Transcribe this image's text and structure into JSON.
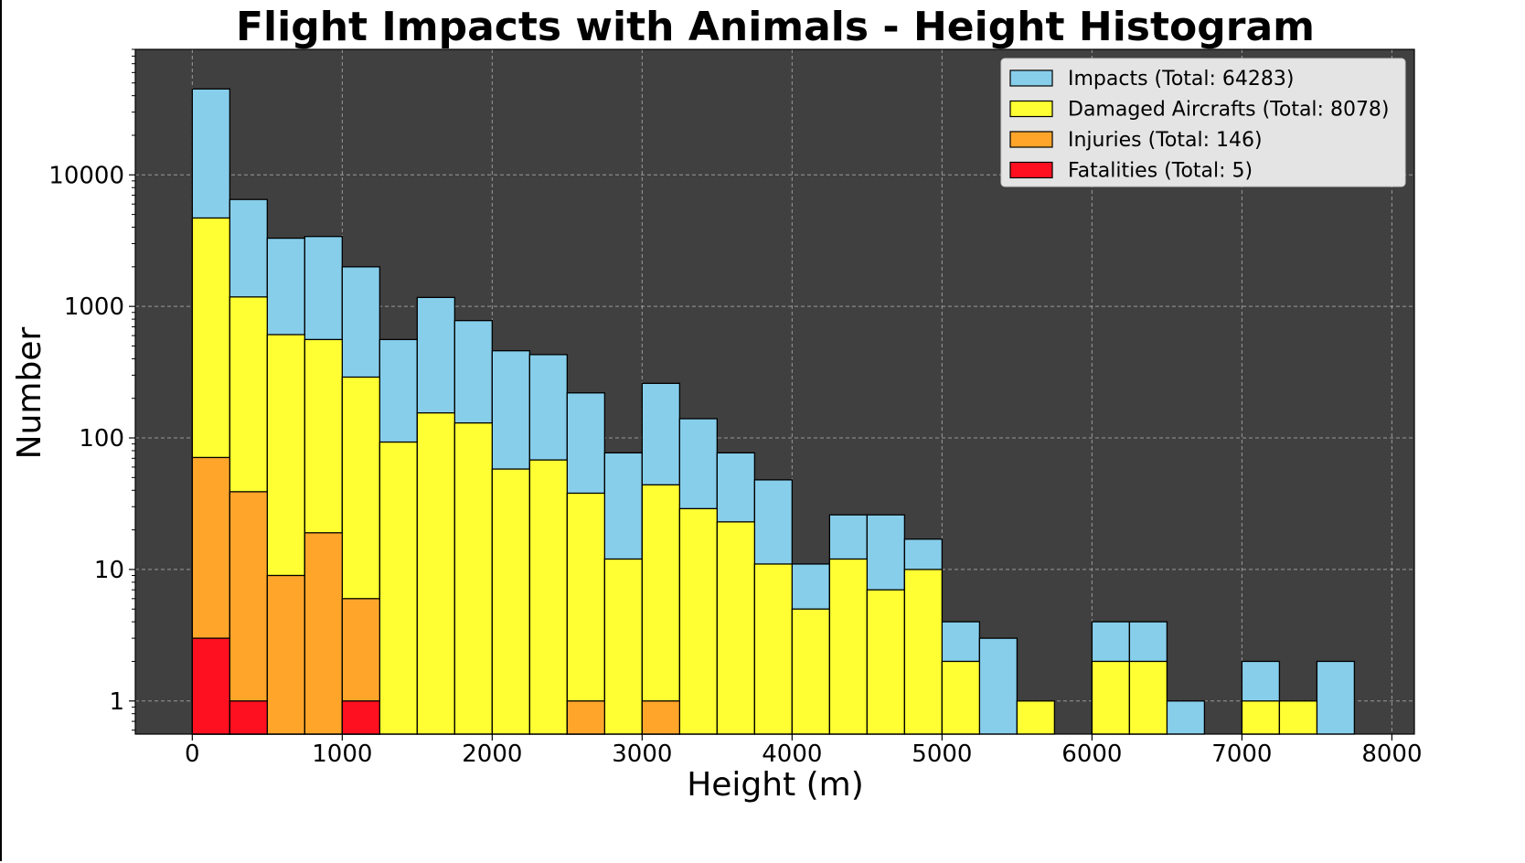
{
  "chart_data": {
    "type": "bar",
    "title": "Flight Impacts with Animals - Height Histogram",
    "xlabel": "Height (m)",
    "ylabel": "Number",
    "yscale": "log",
    "xlim": [
      -380,
      8150
    ],
    "ylim": [
      0.56,
      90000
    ],
    "x_ticks": [
      0,
      1000,
      2000,
      3000,
      4000,
      5000,
      6000,
      7000,
      8000
    ],
    "x_tick_labels": [
      "0",
      "1000",
      "2000",
      "3000",
      "4000",
      "5000",
      "6000",
      "7000",
      "8000"
    ],
    "y_ticks": [
      1,
      10,
      100,
      1000,
      10000
    ],
    "y_tick_labels": [
      "1",
      "10",
      "100",
      "1000",
      "10000"
    ],
    "grid": true,
    "legend_position": "top-right",
    "background_color": "#404040",
    "bin_width": 250,
    "bin_starts": [
      0,
      250,
      500,
      750,
      1000,
      1250,
      1500,
      1750,
      2000,
      2250,
      2500,
      2750,
      3000,
      3250,
      3500,
      3750,
      4000,
      4250,
      4500,
      4750,
      5000,
      5250,
      5500,
      5750,
      6000,
      6250,
      6500,
      6750,
      7000,
      7250,
      7500
    ],
    "series": [
      {
        "name": "Impacts (Total: 64283)",
        "color": "#87CEEB",
        "values": [
          45000,
          6500,
          3300,
          3400,
          2000,
          560,
          1170,
          780,
          460,
          430,
          220,
          77,
          260,
          140,
          77,
          48,
          11,
          26,
          26,
          17,
          4,
          3,
          0,
          0,
          4,
          4,
          1,
          0,
          2,
          0,
          2
        ]
      },
      {
        "name": "Damaged Aircrafts (Total: 8078)",
        "color": "#FFFF33",
        "values": [
          4700,
          1180,
          610,
          560,
          290,
          93,
          155,
          130,
          58,
          68,
          38,
          12,
          44,
          29,
          23,
          11,
          5,
          12,
          7,
          10,
          2,
          0,
          1,
          0,
          2,
          2,
          0,
          0,
          1,
          1,
          0
        ]
      },
      {
        "name": "Injuries (Total: 146)",
        "color": "#FFA52A",
        "values": [
          71,
          39,
          9,
          19,
          6,
          0,
          0,
          0,
          0,
          0,
          1,
          0,
          1,
          0,
          0,
          0,
          0,
          0,
          0,
          0,
          0,
          0,
          0,
          0,
          0,
          0,
          0,
          0,
          0,
          0,
          0
        ]
      },
      {
        "name": "Fatalities (Total: 5)",
        "color": "#FF1020",
        "values": [
          3,
          1,
          0,
          0,
          1,
          0,
          0,
          0,
          0,
          0,
          0,
          0,
          0,
          0,
          0,
          0,
          0,
          0,
          0,
          0,
          0,
          0,
          0,
          0,
          0,
          0,
          0,
          0,
          0,
          0,
          0
        ]
      }
    ]
  }
}
